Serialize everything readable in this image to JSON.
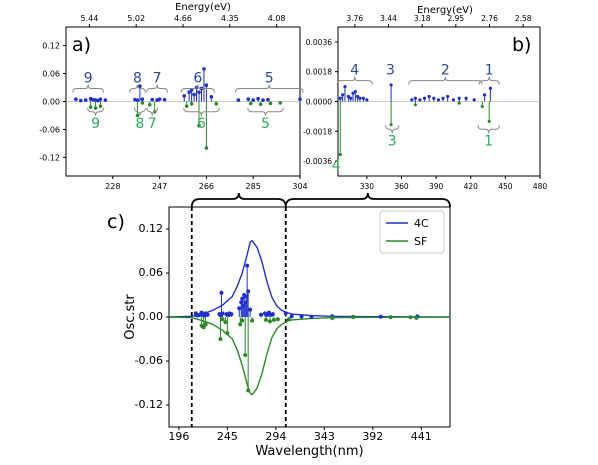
{
  "colors": {
    "series_4c": "#1f2fd0",
    "series_sf": "#2a8a2a",
    "label_4c": "#2b47a8",
    "label_sf": "#2faa5a",
    "axis": "#000000"
  },
  "chart_data": [
    {
      "panel": "a)",
      "type": "stem",
      "xlabel": "",
      "x_ticks": [
        "228",
        "247",
        "266",
        "285",
        "304"
      ],
      "top_axis_label": "Energy(eV)",
      "top_ticks": [
        "5.44",
        "5.02",
        "4.66",
        "4.35",
        "4.08"
      ],
      "y_ticks": [
        "0.12",
        "0.06",
        "0.00",
        "-0.06",
        "-0.12"
      ],
      "xlim": [
        209,
        304
      ],
      "ylim": [
        -0.16,
        0.16
      ],
      "group_labels_4c": [
        {
          "label": "9",
          "range": [
            213,
            223
          ]
        },
        {
          "label": "8",
          "range": [
            236,
            240
          ]
        },
        {
          "label": "7",
          "range": [
            243,
            249
          ]
        },
        {
          "label": "6",
          "range": [
            257,
            268
          ]
        },
        {
          "label": "5",
          "range": [
            279,
            304
          ]
        }
      ],
      "group_labels_sf": [
        {
          "label": "9",
          "range": [
            219,
            223
          ]
        },
        {
          "label": "8",
          "range": [
            238,
            240
          ]
        },
        {
          "label": "7",
          "range": [
            243,
            245
          ]
        },
        {
          "label": "6",
          "range": [
            258,
            270
          ]
        },
        {
          "label": "5",
          "range": [
            284,
            296
          ]
        }
      ],
      "series": [
        {
          "name": "4C",
          "x": [
            213,
            215,
            217,
            219,
            220,
            221,
            222,
            223,
            225,
            237,
            238,
            239,
            240,
            244,
            246,
            247,
            249,
            257,
            259,
            260,
            261,
            262,
            263,
            264,
            265,
            266,
            268,
            279,
            283,
            285,
            287,
            289,
            291,
            304
          ],
          "y": [
            0.005,
            0.002,
            0.003,
            0.006,
            0.004,
            0.003,
            0.002,
            0.005,
            0.003,
            0.004,
            0.003,
            0.033,
            0.005,
            0.004,
            0.003,
            0.005,
            0.004,
            0.012,
            0.02,
            0.025,
            0.015,
            0.03,
            0.02,
            0.028,
            0.07,
            0.035,
            0.01,
            0.003,
            0.005,
            0.003,
            0.006,
            0.003,
            0.004,
            0.005
          ]
        },
        {
          "name": "SF",
          "x": [
            219,
            221,
            223,
            238,
            240,
            243,
            245,
            258,
            260,
            263,
            266,
            270,
            284,
            288,
            292,
            296
          ],
          "y": [
            -0.012,
            -0.014,
            -0.01,
            -0.03,
            -0.003,
            -0.007,
            -0.022,
            -0.01,
            -0.005,
            -0.052,
            -0.1,
            -0.005,
            -0.004,
            -0.006,
            -0.004,
            -0.003
          ]
        }
      ]
    },
    {
      "panel": "b)",
      "type": "stem",
      "xlabel": "",
      "x_ticks": [
        "330",
        "360",
        "390",
        "420",
        "450",
        "480"
      ],
      "top_axis_label": "Energy(eV)",
      "top_ticks": [
        "3.76",
        "3.44",
        "3.18",
        "2.95",
        "2.76",
        "2.58"
      ],
      "y_ticks": [
        "0.0036",
        "0.0018",
        "0.0000",
        "-0.0018",
        "-0.0036"
      ],
      "xlim": [
        305,
        480
      ],
      "ylim": [
        -0.0045,
        0.0045
      ],
      "group_labels_4c": [
        {
          "label": "4",
          "range": [
            306,
            333
          ]
        },
        {
          "label": "3",
          "range": [
            350,
            351
          ]
        },
        {
          "label": "2",
          "range": [
            368,
            428
          ]
        },
        {
          "label": "1",
          "range": [
            429,
            443
          ]
        }
      ],
      "group_labels_sf": [
        {
          "label": "4",
          "range": [
            306,
            307
          ]
        },
        {
          "label": "3",
          "range": [
            348,
            356
          ]
        },
        {
          "label": "1",
          "range": [
            428,
            443
          ]
        }
      ],
      "series": [
        {
          "name": "4C",
          "x": [
            307,
            309,
            311,
            314,
            316,
            318,
            320,
            322,
            324,
            327,
            330,
            351,
            369,
            372,
            376,
            380,
            384,
            388,
            392,
            396,
            400,
            405,
            410,
            416,
            423,
            432,
            437
          ],
          "y": [
            0.0002,
            0.0004,
            0.0009,
            0.0003,
            0.0002,
            0.0005,
            0.0006,
            0.0003,
            0.0002,
            0.0002,
            0.0001,
            0.001,
            0.0001,
            0.0002,
            0.0001,
            0.0002,
            0.0003,
            0.0002,
            0.0001,
            0.0002,
            0.0003,
            0.0001,
            0.0002,
            0.0002,
            0.0001,
            0.0004,
            0.0008
          ]
        },
        {
          "name": "SF",
          "x": [
            307,
            351,
            372,
            410,
            430,
            436
          ],
          "y": [
            -0.0032,
            -0.0014,
            -0.0002,
            -0.0001,
            -0.0003,
            -0.0012
          ]
        }
      ]
    },
    {
      "panel": "c)",
      "type": "stem+line",
      "xlabel": "Wavelength(nm)",
      "ylabel": "Osc.str",
      "x_ticks": [
        "196",
        "245",
        "294",
        "343",
        "392",
        "441"
      ],
      "y_ticks": [
        "0.12",
        "0.06",
        "0.00",
        "-0.06",
        "-0.12"
      ],
      "xlim": [
        186,
        470
      ],
      "ylim": [
        -0.15,
        0.15
      ],
      "legend": {
        "position": "top-right",
        "entries": [
          "4C",
          "SF"
        ]
      },
      "dashed_lines_x": [
        209,
        304
      ],
      "series": [
        {
          "name": "4C",
          "x": [
            209,
            220,
            230,
            240,
            250,
            255,
            260,
            265,
            268,
            270,
            275,
            280,
            285,
            290,
            295,
            300,
            305,
            310,
            320,
            330,
            340,
            350,
            360,
            380,
            400,
            420,
            440,
            460,
            470
          ],
          "y": [
            0.001,
            0.004,
            0.009,
            0.016,
            0.028,
            0.042,
            0.06,
            0.085,
            0.102,
            0.104,
            0.095,
            0.075,
            0.048,
            0.027,
            0.015,
            0.009,
            0.006,
            0.004,
            0.003,
            0.002,
            0.0015,
            0.001,
            0.0008,
            0.0005,
            0.0004,
            0.0003,
            0.0002,
            0.0001,
            0.0001
          ],
          "sticks_x": [
            213,
            215,
            217,
            219,
            220,
            221,
            222,
            223,
            225,
            237,
            238,
            239,
            240,
            244,
            246,
            247,
            249,
            257,
            259,
            260,
            261,
            262,
            263,
            264,
            265,
            266,
            268,
            279,
            283,
            285,
            287,
            289,
            291,
            304,
            310,
            320,
            330,
            351,
            372,
            400,
            437
          ],
          "sticks_y": [
            0.005,
            0.002,
            0.003,
            0.006,
            0.004,
            0.003,
            0.002,
            0.005,
            0.003,
            0.004,
            0.003,
            0.033,
            0.005,
            0.004,
            0.003,
            0.005,
            0.004,
            0.012,
            0.02,
            0.025,
            0.015,
            0.03,
            0.02,
            0.028,
            0.07,
            0.035,
            0.01,
            0.003,
            0.005,
            0.003,
            0.006,
            0.003,
            0.004,
            0.005,
            0.0009,
            0.0006,
            0.0002,
            0.001,
            0.0002,
            0.0003,
            0.0008
          ]
        },
        {
          "name": "SF",
          "x": [
            209,
            220,
            230,
            240,
            250,
            255,
            260,
            265,
            268,
            270,
            275,
            280,
            285,
            290,
            295,
            300,
            305,
            310,
            320,
            330,
            340,
            350,
            360,
            380,
            400,
            420,
            440,
            460,
            470
          ],
          "y": [
            -0.001,
            -0.005,
            -0.01,
            -0.018,
            -0.03,
            -0.045,
            -0.066,
            -0.092,
            -0.104,
            -0.106,
            -0.097,
            -0.077,
            -0.05,
            -0.028,
            -0.016,
            -0.01,
            -0.006,
            -0.004,
            -0.003,
            -0.002,
            -0.0015,
            -0.001,
            -0.0008,
            -0.0005,
            -0.0004,
            -0.0003,
            -0.0002,
            -0.0001,
            -0.0001
          ],
          "sticks_x": [
            219,
            221,
            223,
            238,
            240,
            243,
            245,
            258,
            260,
            263,
            266,
            270,
            284,
            288,
            292,
            296,
            307,
            351,
            372,
            410,
            430,
            436
          ],
          "sticks_y": [
            -0.012,
            -0.014,
            -0.01,
            -0.03,
            -0.003,
            -0.007,
            -0.022,
            -0.01,
            -0.005,
            -0.052,
            -0.1,
            -0.005,
            -0.004,
            -0.006,
            -0.004,
            -0.003,
            -0.0032,
            -0.0014,
            -0.0002,
            -0.0001,
            -0.0003,
            -0.0012
          ]
        }
      ]
    }
  ]
}
